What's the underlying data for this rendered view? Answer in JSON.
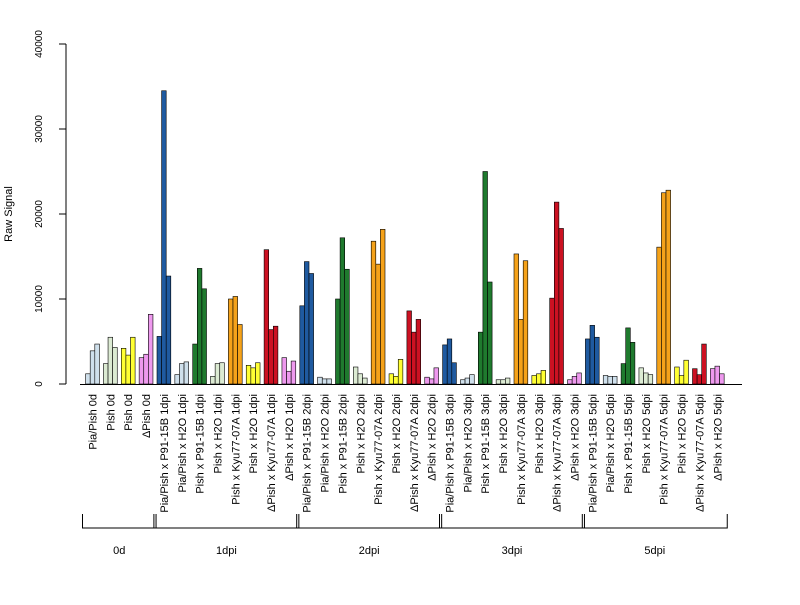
{
  "chart_data": {
    "type": "bar",
    "ylabel": "Raw Signal",
    "ylim": [
      0,
      40000
    ],
    "yticks": [
      0,
      10000,
      20000,
      30000,
      40000
    ],
    "grid": false,
    "colors": {
      "Pia/Pish": "#cfe0ec",
      "Pia/Pish x H2O": "#cfe0ec",
      "Pish": "#dcebd3",
      "Pish x H2O": "#dcebd3",
      "Pish x P91-15B": "#1f5aa0",
      "Pish x P91-15B (Pia)": "#1f5aa0",
      "Pish x P91-15B (Pish)": "#1f7a2e",
      "Pish x Kyu77-07A": "#f5a21a",
      "Pish yellow": "#ffff33",
      "dPish": "#ee99ee",
      "dPish x Kyu77-07A": "#cc1122"
    },
    "categories": [
      {
        "label": "Pia/Pish 0d",
        "color": "#cfe0ec",
        "values": [
          1200,
          3900,
          4700
        ]
      },
      {
        "label": "Pish 0d",
        "color": "#dcebd3",
        "values": [
          2400,
          5500,
          4300
        ]
      },
      {
        "label": "Pish 0d",
        "color": "#ffff33",
        "values": [
          4200,
          3400,
          5500
        ]
      },
      {
        "label": "ΔPish 0d",
        "color": "#ee99ee",
        "values": [
          3100,
          3500,
          8200
        ]
      },
      {
        "label": "Pia/Pish x P91-15B 1dpi",
        "color": "#1f5aa0",
        "values": [
          5600,
          34500,
          12700
        ]
      },
      {
        "label": "Pia/Pish x H2O 1dpi",
        "color": "#cfe0ec",
        "values": [
          1100,
          2400,
          2600
        ]
      },
      {
        "label": "Pish x P91-15B 1dpi",
        "color": "#1f7a2e",
        "values": [
          4700,
          13600,
          11200
        ]
      },
      {
        "label": "Pish x H2O 1dpi",
        "color": "#dcebd3",
        "values": [
          900,
          2400,
          2500
        ]
      },
      {
        "label": "Pish x Kyu77-07A 1dpi",
        "color": "#f5a21a",
        "values": [
          10000,
          10300,
          7000
        ]
      },
      {
        "label": "Pish x H2O 1dpi",
        "color": "#ffff33",
        "values": [
          2200,
          1900,
          2500
        ]
      },
      {
        "label": "ΔPish x Kyu77-07A 1dpi",
        "color": "#cc1122",
        "values": [
          15800,
          6400,
          6800
        ]
      },
      {
        "label": "ΔPish x H2O 1dpi",
        "color": "#ee99ee",
        "values": [
          3100,
          1500,
          2700
        ]
      },
      {
        "label": "Pia/Pish x P91-15B 2dpi",
        "color": "#1f5aa0",
        "values": [
          9200,
          14400,
          13000
        ]
      },
      {
        "label": "Pia/Pish x H2O 2dpi",
        "color": "#cfe0ec",
        "values": [
          800,
          600,
          600
        ]
      },
      {
        "label": "Pish x P91-15B 2dpi",
        "color": "#1f7a2e",
        "values": [
          10000,
          17200,
          13500
        ]
      },
      {
        "label": "Pish x H2O 2dpi",
        "color": "#dcebd3",
        "values": [
          2000,
          1200,
          700
        ]
      },
      {
        "label": "Pish x Kyu77-07A 2dpi",
        "color": "#f5a21a",
        "values": [
          16800,
          14100,
          18200
        ]
      },
      {
        "label": "Pish x H2O 2dpi",
        "color": "#ffff33",
        "values": [
          1200,
          900,
          2900
        ]
      },
      {
        "label": "ΔPish x Kyu77-07A 2dpi",
        "color": "#cc1122",
        "values": [
          8600,
          6100,
          7600
        ]
      },
      {
        "label": "ΔPish x H2O 2dpi",
        "color": "#ee99ee",
        "values": [
          800,
          600,
          1900
        ]
      },
      {
        "label": "Pia/Pish x P91-15B 3dpi",
        "color": "#1f5aa0",
        "values": [
          4600,
          5300,
          2500
        ]
      },
      {
        "label": "Pia/Pish x H2O 3dpi",
        "color": "#cfe0ec",
        "values": [
          500,
          700,
          1100
        ]
      },
      {
        "label": "Pish x P91-15B 3dpi",
        "color": "#1f7a2e",
        "values": [
          6100,
          25000,
          12000
        ]
      },
      {
        "label": "Pish x H2O 3dpi",
        "color": "#dcebd3",
        "values": [
          500,
          500,
          700
        ]
      },
      {
        "label": "Pish x Kyu77-07A 3dpi",
        "color": "#f5a21a",
        "values": [
          15300,
          7600,
          14500
        ]
      },
      {
        "label": "Pish x H2O 3dpi",
        "color": "#ffff33",
        "values": [
          1000,
          1200,
          1600
        ]
      },
      {
        "label": "ΔPish x Kyu77-07A 3dpi",
        "color": "#cc1122",
        "values": [
          10100,
          21400,
          18300
        ]
      },
      {
        "label": "ΔPish x H2O 3dpi",
        "color": "#ee99ee",
        "values": [
          500,
          900,
          1300
        ]
      },
      {
        "label": "Pia/Pish x P91-15B 5dpi",
        "color": "#1f5aa0",
        "values": [
          5300,
          6900,
          5500
        ]
      },
      {
        "label": "Pia/Pish x H2O 5dpi",
        "color": "#cfe0ec",
        "values": [
          1000,
          900,
          900
        ]
      },
      {
        "label": "Pish x P91-15B 5dpi",
        "color": "#1f7a2e",
        "values": [
          2400,
          6600,
          4900
        ]
      },
      {
        "label": "Pish x H2O 5dpi",
        "color": "#dcebd3",
        "values": [
          1900,
          1300,
          1100
        ]
      },
      {
        "label": "Pish x Kyu77-07A 5dpi",
        "color": "#f5a21a",
        "values": [
          16100,
          22500,
          22800
        ]
      },
      {
        "label": "Pish x H2O 5dpi",
        "color": "#ffff33",
        "values": [
          2000,
          1000,
          2800
        ]
      },
      {
        "label": "ΔPish x Kyu77-07A 5dpi",
        "color": "#cc1122",
        "values": [
          1800,
          1100,
          4700
        ]
      },
      {
        "label": "ΔPish x H2O 5dpi",
        "color": "#ee99ee",
        "values": [
          1800,
          2100,
          1200
        ]
      }
    ],
    "groups": [
      {
        "label": "0d",
        "start": 0,
        "end": 3
      },
      {
        "label": "1dpi",
        "start": 4,
        "end": 11
      },
      {
        "label": "2dpi",
        "start": 12,
        "end": 19
      },
      {
        "label": "3dpi",
        "start": 20,
        "end": 27
      },
      {
        "label": "5dpi",
        "start": 28,
        "end": 35
      }
    ]
  }
}
